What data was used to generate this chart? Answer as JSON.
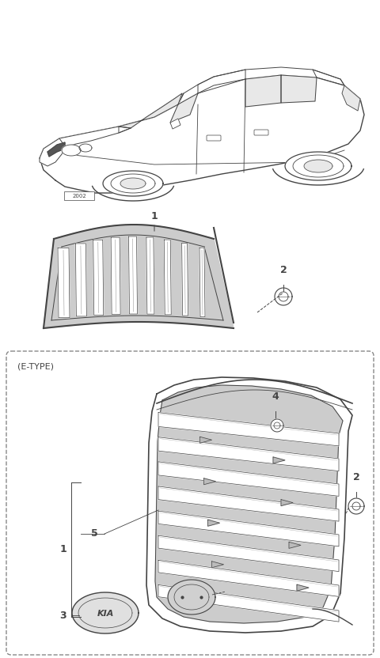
{
  "bg_color": "#ffffff",
  "line_color": "#444444",
  "gray_fill": "#cccccc",
  "light_fill": "#e8e8e8",
  "dashed_color": "#888888",
  "etype_label": "(E-TYPE)"
}
